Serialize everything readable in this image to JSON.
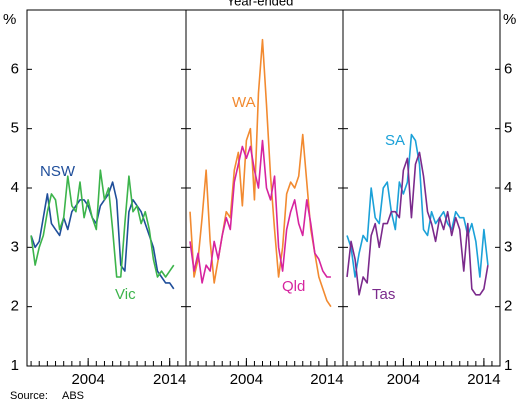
{
  "title": "Year-ended",
  "y_label": "%",
  "source_label": "Source:",
  "source": "ABS",
  "chart_data": [
    {
      "type": "line",
      "xlim": [
        1996.5,
        2016
      ],
      "ylim": [
        1,
        7
      ],
      "yticks": [
        1,
        2,
        3,
        4,
        5,
        6
      ],
      "xticks": [
        2004,
        2014
      ],
      "minor_xticks": [
        1997,
        1998,
        1999,
        2000,
        2001,
        2002,
        2003,
        2004,
        2005,
        2006,
        2007,
        2008,
        2009,
        2010,
        2011,
        2012,
        2013,
        2014,
        2015
      ],
      "x": [
        1997,
        1997.5,
        1998,
        1998.5,
        1999,
        1999.5,
        2000,
        2000.5,
        2001,
        2001.5,
        2002,
        2002.5,
        2003,
        2003.5,
        2004,
        2004.5,
        2005,
        2005.5,
        2006,
        2006.5,
        2007,
        2007.5,
        2008,
        2008.5,
        2009,
        2009.5,
        2010,
        2010.5,
        2011,
        2011.5,
        2012,
        2012.5,
        2013,
        2013.5,
        2014,
        2014.5
      ],
      "series": [
        {
          "name": "NSW",
          "color": "#1f4e9a",
          "values": [
            3.2,
            3.0,
            3.1,
            3.5,
            3.9,
            3.4,
            3.3,
            3.2,
            3.5,
            3.3,
            3.6,
            3.7,
            3.8,
            3.8,
            3.7,
            3.5,
            3.4,
            3.7,
            3.8,
            3.9,
            4.1,
            3.8,
            2.7,
            2.6,
            3.6,
            3.8,
            3.7,
            3.6,
            3.4,
            3.2,
            3.0,
            2.6,
            2.5,
            2.4,
            2.4,
            2.3
          ]
        },
        {
          "name": "Vic",
          "color": "#3cb44b",
          "values": [
            3.2,
            2.7,
            3.0,
            3.2,
            3.6,
            3.9,
            3.8,
            3.3,
            3.5,
            4.2,
            3.7,
            3.6,
            4.1,
            3.5,
            3.8,
            3.5,
            3.3,
            4.3,
            3.8,
            4.0,
            3.3,
            2.5,
            2.5,
            3.4,
            4.2,
            3.6,
            3.7,
            3.4,
            3.6,
            3.3,
            2.8,
            2.5,
            2.6,
            2.5,
            2.6,
            2.7
          ]
        }
      ]
    },
    {
      "type": "line",
      "xlim": [
        1996.5,
        2016
      ],
      "ylim": [
        1,
        7
      ],
      "yticks": [
        1,
        2,
        3,
        4,
        5,
        6
      ],
      "xticks": [
        2004,
        2014
      ],
      "minor_xticks": [
        1997,
        1998,
        1999,
        2000,
        2001,
        2002,
        2003,
        2004,
        2005,
        2006,
        2007,
        2008,
        2009,
        2010,
        2011,
        2012,
        2013,
        2014,
        2015
      ],
      "x": [
        1997,
        1997.5,
        1998,
        1998.5,
        1999,
        1999.5,
        2000,
        2000.5,
        2001,
        2001.5,
        2002,
        2002.5,
        2003,
        2003.5,
        2004,
        2004.5,
        2005,
        2005.5,
        2006,
        2006.5,
        2007,
        2007.5,
        2008,
        2008.5,
        2009,
        2009.5,
        2010,
        2010.5,
        2011,
        2011.5,
        2012,
        2012.5,
        2013,
        2013.5,
        2014,
        2014.5
      ],
      "series": [
        {
          "name": "WA",
          "color": "#f28a30",
          "values": [
            3.6,
            2.5,
            2.8,
            3.5,
            4.3,
            3.1,
            2.4,
            2.8,
            3.2,
            3.6,
            3.5,
            4.3,
            4.6,
            3.7,
            4.8,
            5.0,
            3.8,
            5.6,
            6.5,
            5.4,
            4.2,
            3.3,
            2.5,
            3.0,
            3.9,
            4.1,
            4.0,
            4.2,
            4.9,
            4.1,
            3.3,
            2.9,
            2.5,
            2.3,
            2.1,
            2.0
          ]
        },
        {
          "name": "Qld",
          "color": "#d6249f",
          "values": [
            3.1,
            2.6,
            2.9,
            2.4,
            2.7,
            2.6,
            3.1,
            2.8,
            3.2,
            3.5,
            3.3,
            4.1,
            4.4,
            4.7,
            4.5,
            4.7,
            4.3,
            4.0,
            4.8,
            4.0,
            3.8,
            4.2,
            3.0,
            2.6,
            3.3,
            3.6,
            3.8,
            3.4,
            3.2,
            3.8,
            3.4,
            2.9,
            2.8,
            2.6,
            2.5,
            2.5
          ]
        }
      ]
    },
    {
      "type": "line",
      "xlim": [
        1996.5,
        2016
      ],
      "ylim": [
        1,
        7
      ],
      "yticks": [
        1,
        2,
        3,
        4,
        5,
        6
      ],
      "xticks": [
        2004,
        2014
      ],
      "minor_xticks": [
        1997,
        1998,
        1999,
        2000,
        2001,
        2002,
        2003,
        2004,
        2005,
        2006,
        2007,
        2008,
        2009,
        2010,
        2011,
        2012,
        2013,
        2014,
        2015
      ],
      "x": [
        1997,
        1997.5,
        1998,
        1998.5,
        1999,
        1999.5,
        2000,
        2000.5,
        2001,
        2001.5,
        2002,
        2002.5,
        2003,
        2003.5,
        2004,
        2004.5,
        2005,
        2005.5,
        2006,
        2006.5,
        2007,
        2007.5,
        2008,
        2008.5,
        2009,
        2009.5,
        2010,
        2010.5,
        2011,
        2011.5,
        2012,
        2012.5,
        2013,
        2013.5,
        2014,
        2014.5
      ],
      "series": [
        {
          "name": "SA",
          "color": "#1ba1d8",
          "values": [
            3.2,
            3.0,
            2.5,
            2.9,
            3.2,
            3.1,
            4.0,
            3.5,
            3.4,
            4.0,
            4.1,
            3.6,
            3.3,
            4.1,
            3.9,
            4.1,
            4.9,
            4.8,
            4.4,
            3.3,
            3.2,
            3.6,
            3.4,
            3.5,
            3.6,
            3.4,
            3.3,
            3.6,
            3.5,
            3.5,
            3.2,
            3.4,
            3.1,
            2.5,
            3.3,
            2.7
          ]
        },
        {
          "name": "Tas",
          "color": "#7b2a8c",
          "values": [
            2.5,
            3.1,
            2.8,
            2.2,
            2.5,
            2.4,
            3.2,
            3.4,
            3.0,
            3.4,
            3.4,
            3.6,
            3.6,
            3.5,
            4.3,
            4.5,
            3.5,
            4.4,
            4.6,
            4.2,
            3.6,
            3.4,
            3.1,
            3.5,
            3.3,
            3.6,
            3.2,
            3.5,
            3.3,
            2.6,
            3.4,
            2.3,
            2.2,
            2.2,
            2.3,
            2.7
          ]
        }
      ]
    }
  ]
}
